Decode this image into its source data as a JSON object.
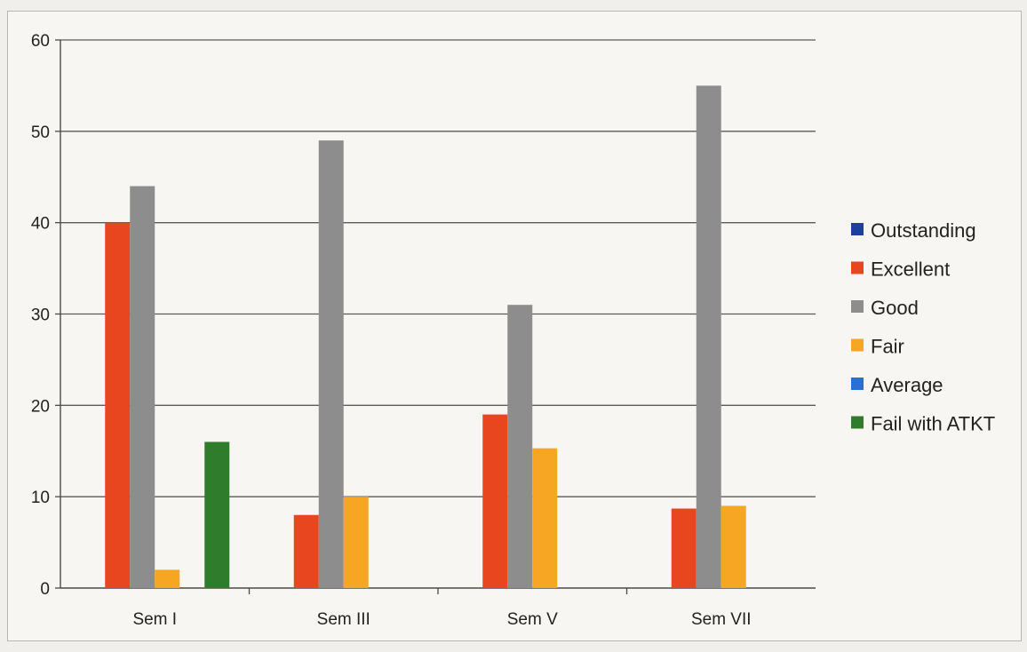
{
  "chart_data": {
    "type": "bar",
    "categories": [
      "Sem I",
      "Sem III",
      "Sem V",
      "Sem VII"
    ],
    "series": [
      {
        "name": "Outstanding",
        "color": "#1d3f9e",
        "values": [
          0,
          0,
          0,
          0
        ]
      },
      {
        "name": "Excellent",
        "color": "#e8461e",
        "values": [
          40,
          8,
          19,
          8.7
        ]
      },
      {
        "name": "Good",
        "color": "#8e8d8d",
        "values": [
          44,
          49,
          31,
          55
        ]
      },
      {
        "name": "Fair",
        "color": "#f6a623",
        "values": [
          2,
          10,
          15.3,
          9
        ]
      },
      {
        "name": "Average",
        "color": "#2a6fd3",
        "values": [
          0,
          0,
          0,
          0
        ]
      },
      {
        "name": "Fail with ATKT",
        "color": "#2f7d2c",
        "values": [
          16,
          0,
          0,
          0
        ]
      }
    ],
    "ylim": [
      0,
      60
    ],
    "yticks": [
      "0",
      "10",
      "20",
      "30",
      "40",
      "50",
      "60"
    ],
    "grid": true,
    "legend_position": "right",
    "xlabel": "",
    "ylabel": "",
    "title": ""
  }
}
